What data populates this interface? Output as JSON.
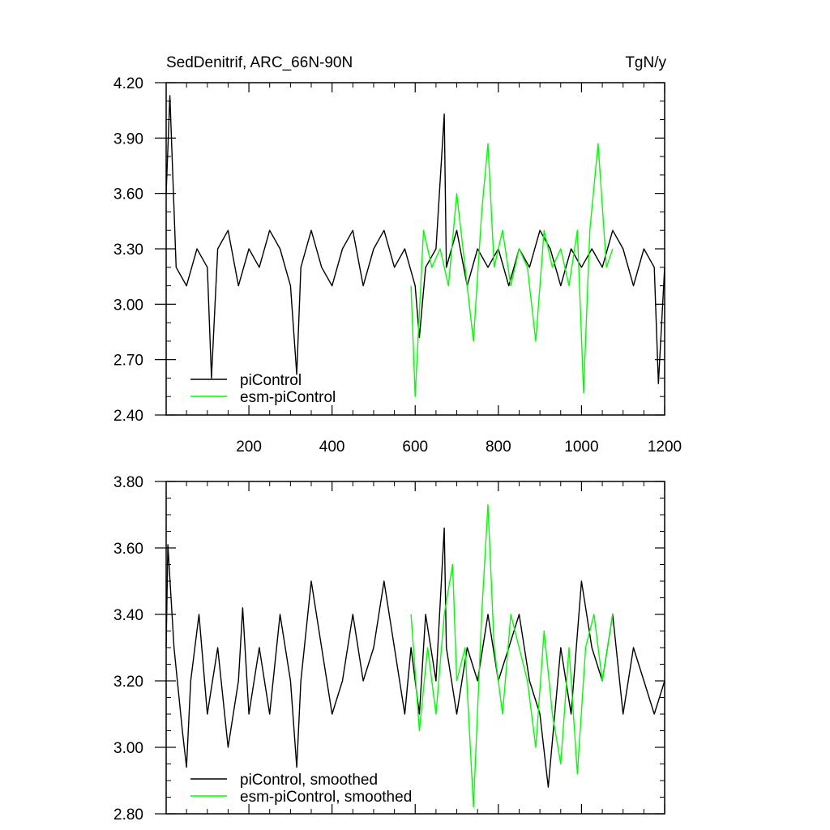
{
  "chart_data": [
    {
      "type": "line",
      "title_left": "SedDenitrif, ARC_66N-90N",
      "title_right": "TgN/y",
      "xlim": [
        1,
        1200
      ],
      "ylim": [
        2.4,
        4.2
      ],
      "xticks": [
        200,
        400,
        600,
        800,
        1000,
        1200
      ],
      "xtick_labels": [
        "200",
        "400",
        "600",
        "800",
        "1000",
        "1200"
      ],
      "yticks": [
        2.4,
        2.7,
        3.0,
        3.3,
        3.6,
        3.9,
        4.2
      ],
      "ytick_labels": [
        "2.40",
        "2.70",
        "3.00",
        "3.30",
        "3.60",
        "3.90",
        "4.20"
      ],
      "legend_position": "bottom-left",
      "series": [
        {
          "name": "piControl",
          "color": "#000000",
          "x": [
            1,
            10,
            25,
            50,
            75,
            100,
            110,
            125,
            150,
            175,
            200,
            225,
            250,
            275,
            300,
            315,
            325,
            350,
            375,
            400,
            425,
            450,
            475,
            500,
            525,
            550,
            575,
            600,
            610,
            625,
            650,
            670,
            675,
            700,
            725,
            750,
            775,
            800,
            825,
            850,
            875,
            900,
            925,
            950,
            975,
            1000,
            1025,
            1050,
            1075,
            1100,
            1125,
            1150,
            1175,
            1185,
            1200
          ],
          "values": [
            3.6,
            4.13,
            3.2,
            3.1,
            3.3,
            3.2,
            2.6,
            3.3,
            3.4,
            3.1,
            3.3,
            3.2,
            3.4,
            3.3,
            3.1,
            2.62,
            3.2,
            3.4,
            3.2,
            3.1,
            3.3,
            3.4,
            3.1,
            3.3,
            3.4,
            3.2,
            3.3,
            3.1,
            2.82,
            3.2,
            3.3,
            4.03,
            3.2,
            3.4,
            3.1,
            3.3,
            3.2,
            3.3,
            3.1,
            3.3,
            3.2,
            3.4,
            3.3,
            3.1,
            3.3,
            3.2,
            3.3,
            3.2,
            3.4,
            3.3,
            3.1,
            3.3,
            3.2,
            2.57,
            3.2
          ]
        },
        {
          "name": "esm-piControl",
          "color": "#00ff00",
          "x": [
            590,
            600,
            620,
            640,
            660,
            680,
            700,
            720,
            740,
            760,
            775,
            790,
            810,
            830,
            850,
            870,
            890,
            910,
            930,
            950,
            970,
            990,
            1005,
            1020,
            1040,
            1060,
            1075
          ],
          "values": [
            3.1,
            2.5,
            3.4,
            3.2,
            3.3,
            3.1,
            3.6,
            3.2,
            2.8,
            3.5,
            3.87,
            3.2,
            3.4,
            3.1,
            3.3,
            3.2,
            2.8,
            3.4,
            3.2,
            3.3,
            3.1,
            3.4,
            2.52,
            3.4,
            3.87,
            3.2,
            3.3
          ]
        }
      ]
    },
    {
      "type": "line",
      "xlim": [
        1,
        1200
      ],
      "ylim": [
        2.8,
        3.8
      ],
      "xticks": [
        200,
        400,
        600,
        800,
        1000,
        1200
      ],
      "yticks": [
        2.8,
        3.0,
        3.2,
        3.4,
        3.6,
        3.8
      ],
      "ytick_labels": [
        "2.80",
        "3.00",
        "3.20",
        "3.40",
        "3.60",
        "3.80"
      ],
      "legend_position": "bottom-left",
      "series": [
        {
          "name": "piControl, smoothed",
          "color": "#000000",
          "x": [
            1,
            5,
            20,
            40,
            50,
            60,
            80,
            100,
            125,
            150,
            175,
            185,
            200,
            225,
            250,
            275,
            300,
            315,
            325,
            350,
            375,
            400,
            425,
            450,
            475,
            500,
            525,
            550,
            575,
            590,
            610,
            625,
            650,
            670,
            675,
            700,
            725,
            750,
            775,
            800,
            825,
            850,
            875,
            900,
            920,
            950,
            975,
            1000,
            1025,
            1050,
            1075,
            1100,
            1125,
            1150,
            1175,
            1200
          ],
          "values": [
            3.3,
            3.61,
            3.3,
            3.05,
            2.94,
            3.2,
            3.4,
            3.1,
            3.3,
            3.0,
            3.2,
            3.42,
            3.1,
            3.3,
            3.1,
            3.4,
            3.2,
            2.94,
            3.2,
            3.5,
            3.3,
            3.1,
            3.2,
            3.4,
            3.2,
            3.3,
            3.5,
            3.3,
            3.1,
            3.3,
            3.1,
            3.4,
            3.2,
            3.66,
            3.3,
            3.1,
            3.3,
            3.2,
            3.4,
            3.2,
            3.3,
            3.4,
            3.2,
            3.1,
            2.88,
            3.3,
            3.1,
            3.5,
            3.3,
            3.2,
            3.4,
            3.1,
            3.3,
            3.2,
            3.1,
            3.2
          ]
        },
        {
          "name": "esm-piControl, smoothed",
          "color": "#00ff00",
          "x": [
            590,
            610,
            630,
            650,
            670,
            690,
            700,
            720,
            740,
            760,
            775,
            790,
            810,
            830,
            850,
            870,
            890,
            910,
            930,
            950,
            970,
            990,
            1010,
            1030,
            1050,
            1075
          ],
          "values": [
            3.4,
            3.05,
            3.3,
            3.1,
            3.4,
            3.55,
            3.2,
            3.3,
            2.82,
            3.4,
            3.73,
            3.3,
            3.1,
            3.4,
            3.3,
            3.2,
            3.0,
            3.35,
            3.1,
            2.95,
            3.3,
            2.92,
            3.3,
            3.4,
            3.2,
            3.4
          ]
        }
      ]
    }
  ]
}
